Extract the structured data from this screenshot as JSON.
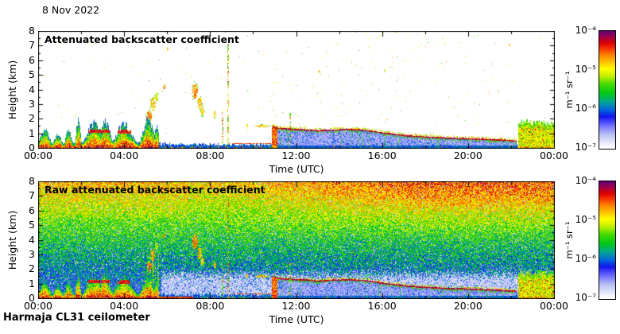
{
  "page": {
    "date_label": "8 Nov 2022",
    "footer_label": "Harmaja CL31 ceilometer",
    "bg_color": "#ffffff",
    "frame_color": "#000000"
  },
  "colormap": {
    "stops": [
      [
        0.0,
        "#ffffff"
      ],
      [
        0.04,
        "#eceefc"
      ],
      [
        0.12,
        "#b8c0f4"
      ],
      [
        0.2,
        "#6a6aff"
      ],
      [
        0.27,
        "#1414f0"
      ],
      [
        0.33,
        "#0066dd"
      ],
      [
        0.4,
        "#00a890"
      ],
      [
        0.47,
        "#00c818"
      ],
      [
        0.55,
        "#46dc00"
      ],
      [
        0.62,
        "#c8f000"
      ],
      [
        0.68,
        "#ffff00"
      ],
      [
        0.74,
        "#ffc000"
      ],
      [
        0.8,
        "#ff8000"
      ],
      [
        0.85,
        "#f93800"
      ],
      [
        0.9,
        "#dc0000"
      ],
      [
        0.95,
        "#a0004b"
      ],
      [
        1.0,
        "#640070"
      ]
    ]
  },
  "chart_data": [
    {
      "type": "heatmap",
      "title": "Attenuated backscatter coefficient",
      "xlabel": "Time (UTC)",
      "ylabel": "Height (km)",
      "x_tick_labels": [
        "00:00",
        "04:00",
        "08:00",
        "12:00",
        "16:00",
        "20:00",
        "00:00"
      ],
      "x_range_hours": [
        0,
        24
      ],
      "y_tick_labels": [
        "0",
        "1",
        "2",
        "3",
        "4",
        "5",
        "6",
        "7",
        "8"
      ],
      "ylim_km": [
        0,
        8
      ],
      "grid": false,
      "colorbar": {
        "tick_labels": [
          "10⁻⁴",
          "10⁻⁵",
          "10⁻⁶",
          "10⁻⁷"
        ],
        "unit": "m⁻¹ sr⁻¹",
        "scale": "log",
        "range_m1sr1": [
          1e-07,
          0.0001
        ],
        "position": "right"
      },
      "features": {
        "surface_aerosol": {
          "t": [
            0,
            24
          ],
          "top_km": 0.32
        },
        "plumes": {
          "t": [
            0,
            5.62
          ],
          "bumps": [
            [
              0.3,
              1.3,
              0.28
            ],
            [
              0.9,
              1.0,
              0.22
            ],
            [
              1.4,
              1.2,
              0.2
            ],
            [
              1.85,
              1.9,
              0.13
            ],
            [
              2.6,
              1.75,
              0.45
            ],
            [
              3.1,
              1.9,
              0.3
            ],
            [
              4.0,
              1.65,
              0.5
            ],
            [
              5.1,
              2.0,
              0.32
            ],
            [
              5.5,
              1.6,
              0.12
            ]
          ],
          "streaks": [
            [
              2.2,
              3.3,
              1.05,
              1.3
            ],
            [
              3.6,
              4.6,
              1.0,
              1.3
            ]
          ]
        },
        "cloud_bits": [
          [
            5.15,
            2.2,
            0.12,
            0.35,
            0.78
          ],
          [
            5.32,
            3.0,
            0.1,
            0.45,
            0.74
          ],
          [
            5.5,
            3.55,
            0.08,
            0.3,
            0.62
          ],
          [
            5.85,
            4.2,
            0.05,
            0.2,
            0.8
          ],
          [
            6.0,
            6.8,
            0.03,
            0.12,
            0.74
          ],
          [
            7.28,
            3.9,
            0.12,
            0.5,
            0.78
          ],
          [
            7.5,
            3.1,
            0.1,
            0.4,
            0.74
          ],
          [
            7.62,
            2.55,
            0.08,
            0.3,
            0.7
          ],
          [
            8.2,
            2.3,
            0.05,
            0.25,
            0.72
          ],
          [
            9.7,
            1.55,
            0.06,
            0.1,
            0.72
          ],
          [
            10.4,
            1.52,
            0.3,
            0.09,
            0.74
          ],
          [
            13.05,
            5.25,
            0.04,
            0.12,
            0.72
          ],
          [
            16.1,
            5.3,
            0.03,
            0.1,
            0.6
          ],
          [
            21.9,
            7.1,
            0.04,
            0.12,
            0.72
          ]
        ],
        "spikes": [
          [
            8.83,
            0.25,
            7.2
          ],
          [
            8.55,
            0.3,
            2.6
          ],
          [
            11.7,
            0.2,
            2.4
          ]
        ],
        "pre_stratus_redline": {
          "t": [
            8.95,
            10.8
          ],
          "h_km": 0.33
        },
        "stratus": {
          "t": [
            10.85,
            22.25
          ],
          "onset_column_t": [
            10.85,
            11.12
          ],
          "base_km": [
            [
              10.85,
              1.45
            ],
            [
              11.3,
              1.3
            ],
            [
              12.0,
              1.25
            ],
            [
              12.6,
              1.2
            ],
            [
              13.0,
              1.15
            ],
            [
              13.6,
              1.2
            ],
            [
              14.3,
              1.25
            ],
            [
              15.0,
              1.2
            ],
            [
              15.6,
              1.1
            ],
            [
              16.0,
              1.0
            ],
            [
              16.6,
              0.9
            ],
            [
              17.2,
              0.8
            ],
            [
              18.0,
              0.72
            ],
            [
              19.0,
              0.65
            ],
            [
              20.0,
              0.6
            ],
            [
              21.0,
              0.55
            ],
            [
              22.25,
              0.45
            ]
          ]
        },
        "evening_block": {
          "t": [
            22.3,
            24
          ],
          "top_km": 1.9
        }
      }
    },
    {
      "type": "heatmap",
      "title": "Raw attenuated backscatter coefficient",
      "xlabel": "Time (UTC)",
      "ylabel": "Height (km)",
      "x_tick_labels": [
        "00:00",
        "04:00",
        "08:00",
        "12:00",
        "16:00",
        "20:00",
        "00:00"
      ],
      "x_range_hours": [
        0,
        24
      ],
      "y_tick_labels": [
        "0",
        "1",
        "2",
        "3",
        "4",
        "5",
        "6",
        "7",
        "8"
      ],
      "ylim_km": [
        0,
        8
      ],
      "grid": false,
      "raw": true,
      "colorbar": {
        "tick_labels": [
          "10⁻⁴",
          "10⁻⁵",
          "10⁻⁶",
          "10⁻⁷"
        ],
        "unit": "m⁻¹ sr⁻¹",
        "scale": "log",
        "range_m1sr1": [
          1e-07,
          0.0001
        ],
        "position": "right"
      },
      "noise_floor": {
        "base": 0.26,
        "height_gain": 0.45,
        "time_boost": 0.12,
        "white_speckle": 0.06,
        "attenuated_below_km": 1.55,
        "attenuated_after_t": 5.7
      },
      "raw_columns": {
        "t": [
          4.85,
          5.62
        ],
        "top_km": 3.1
      },
      "features": {
        "surface_aerosol": {
          "t": [
            0,
            24
          ],
          "top_km": 0.32
        },
        "plumes": {
          "t": [
            0,
            5.62
          ],
          "bumps": [
            [
              0.3,
              1.3,
              0.28
            ],
            [
              0.9,
              1.0,
              0.22
            ],
            [
              1.4,
              1.2,
              0.2
            ],
            [
              1.85,
              1.9,
              0.13
            ],
            [
              2.6,
              1.75,
              0.45
            ],
            [
              3.1,
              1.9,
              0.3
            ],
            [
              4.0,
              1.65,
              0.5
            ],
            [
              5.1,
              2.0,
              0.32
            ],
            [
              5.5,
              1.6,
              0.12
            ]
          ],
          "streaks": [
            [
              2.2,
              3.3,
              1.05,
              1.3
            ],
            [
              3.6,
              4.6,
              1.0,
              1.3
            ]
          ]
        },
        "cloud_bits": [
          [
            5.15,
            2.2,
            0.12,
            0.35,
            0.78
          ],
          [
            5.32,
            3.0,
            0.1,
            0.45,
            0.74
          ],
          [
            5.5,
            3.55,
            0.08,
            0.3,
            0.62
          ],
          [
            5.85,
            4.2,
            0.05,
            0.2,
            0.8
          ],
          [
            7.28,
            3.9,
            0.12,
            0.5,
            0.78
          ],
          [
            7.5,
            3.1,
            0.1,
            0.4,
            0.74
          ],
          [
            7.62,
            2.55,
            0.08,
            0.3,
            0.7
          ],
          [
            8.2,
            2.3,
            0.05,
            0.25,
            0.72
          ],
          [
            9.7,
            1.55,
            0.06,
            0.1,
            0.72
          ],
          [
            10.4,
            1.52,
            0.3,
            0.09,
            0.74
          ]
        ],
        "spikes": [
          [
            8.83,
            0.25,
            7.2
          ],
          [
            8.55,
            0.3,
            2.6
          ],
          [
            11.7,
            0.2,
            2.4
          ]
        ],
        "pre_stratus_redline": {
          "t": [
            8.95,
            10.8
          ],
          "h_km": 0.33
        },
        "stratus": {
          "t": [
            10.85,
            22.25
          ],
          "onset_column_t": [
            10.85,
            11.12
          ],
          "base_km": [
            [
              10.85,
              1.45
            ],
            [
              11.3,
              1.3
            ],
            [
              12.0,
              1.25
            ],
            [
              12.6,
              1.2
            ],
            [
              13.0,
              1.15
            ],
            [
              13.6,
              1.2
            ],
            [
              14.3,
              1.25
            ],
            [
              15.0,
              1.2
            ],
            [
              15.6,
              1.1
            ],
            [
              16.0,
              1.0
            ],
            [
              16.6,
              0.9
            ],
            [
              17.2,
              0.8
            ],
            [
              18.0,
              0.72
            ],
            [
              19.0,
              0.65
            ],
            [
              20.0,
              0.6
            ],
            [
              21.0,
              0.55
            ],
            [
              22.25,
              0.45
            ]
          ]
        },
        "evening_block": {
          "t": [
            22.3,
            24
          ],
          "top_km": 1.9
        }
      }
    }
  ]
}
